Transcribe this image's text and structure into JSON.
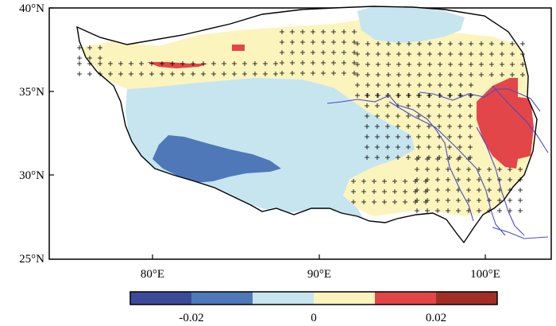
{
  "map": {
    "lat_labels": [
      "40°N",
      "35°N",
      "30°N",
      "25°N"
    ],
    "lon_labels": [
      "80°E",
      "90°E",
      "100°E"
    ]
  },
  "colorbar": {
    "colors": [
      "#3b4a9b",
      "#4f78b8",
      "#c7e5ef",
      "#fbf4bd",
      "#e34648",
      "#a22f26"
    ],
    "labels": [
      "-0.02",
      "0",
      "0.02"
    ],
    "bounds": [
      -0.03,
      -0.02,
      -0.01,
      0,
      0.01,
      0.02,
      0.03
    ]
  }
}
